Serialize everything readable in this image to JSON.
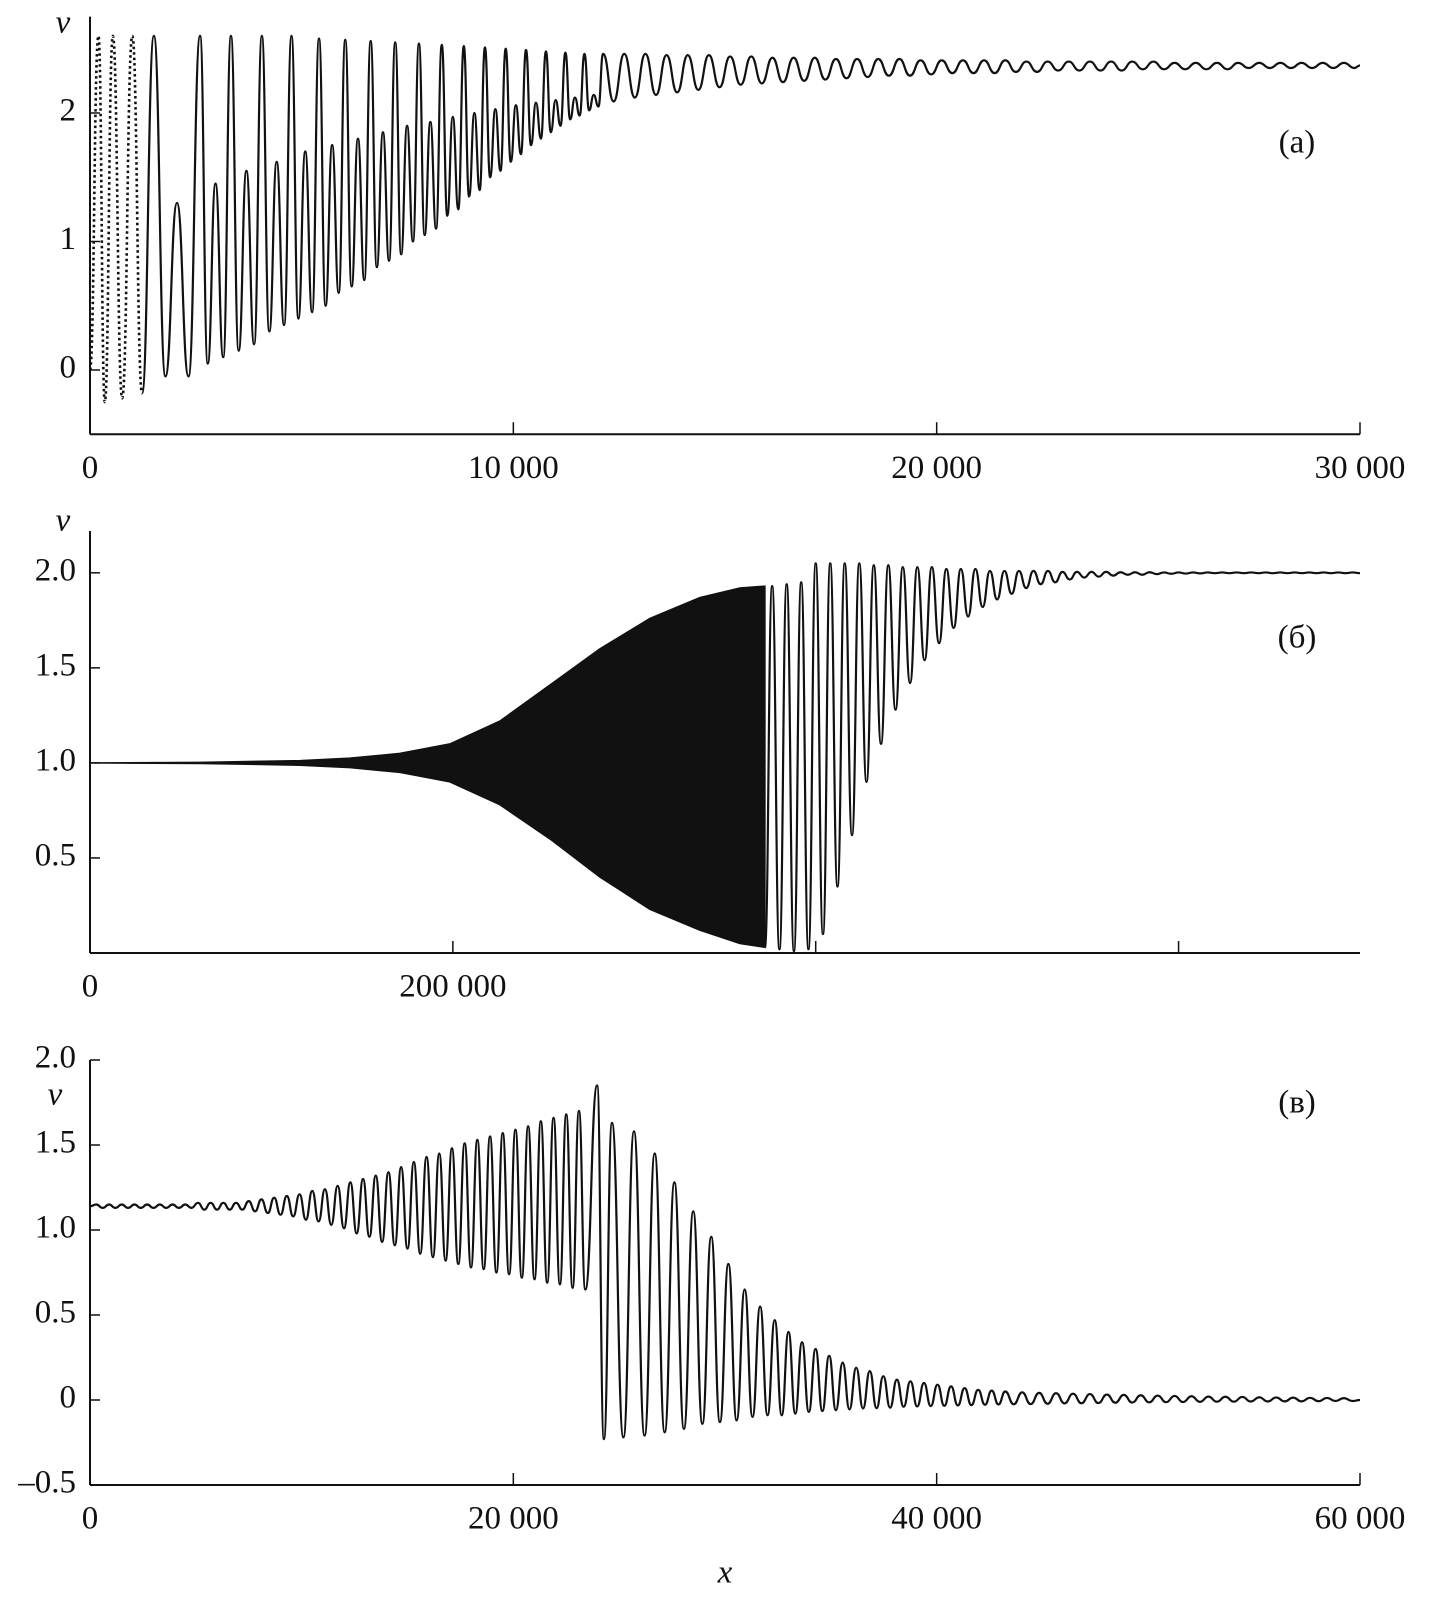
{
  "chart_data": [
    {
      "type": "line",
      "panel_label": "(а)",
      "y_label": "v",
      "color": "#111111",
      "xlim": [
        0,
        30000
      ],
      "ylim": [
        -0.5,
        2.75
      ],
      "xticks": [
        0,
        {
          "value": 10000,
          "label": "10 000"
        },
        {
          "value": 20000,
          "label": "20 000"
        },
        {
          "value": 30000,
          "label": "30 000"
        }
      ],
      "yticks": [
        0,
        1,
        2
      ],
      "series": [
        {
          "type": "line",
          "style": "dotted",
          "x": [
            0,
            200,
            350,
            540,
            760,
            1000,
            1230
          ],
          "values": [
            0,
            2.6,
            -0.25,
            2.6,
            -0.22,
            2.6,
            -0.18
          ]
        },
        {
          "type": "line",
          "style": "solid",
          "x": [
            1230,
            1510,
            1782,
            2055,
            2327,
            2600,
            2782,
            2965,
            3147,
            3330,
            3512,
            3695,
            3877,
            4060,
            4235,
            4410,
            4585,
            4760,
            4922,
            5085,
            5247,
            5410,
            5565,
            5720,
            5875,
            6030,
            6180,
            6330,
            6480,
            6630,
            6775,
            6920,
            7065,
            7210,
            7350,
            7490,
            7630,
            7770,
            7905,
            8040,
            8175,
            8310,
            8440,
            8570,
            8700,
            8830,
            8955,
            9080,
            9205,
            9330,
            9452,
            9575,
            9697,
            9820,
            9940,
            10060,
            10180,
            10300,
            10417,
            10535,
            10652,
            10770,
            10885,
            11000,
            11115,
            11230,
            11342,
            11455,
            11567,
            11680,
            11790,
            11900,
            12010,
            12120,
            12370,
            12620,
            12870,
            13120,
            13370,
            13620,
            13870,
            14120,
            14370,
            14620,
            14870,
            15120,
            15370,
            15620,
            15870,
            16120,
            16370,
            16620,
            16870,
            17120,
            17370,
            17620,
            17870,
            18120,
            18370,
            18620,
            18870,
            19120,
            19370,
            19620,
            19870,
            20120,
            20370,
            20620,
            20870,
            21120,
            21370,
            21620,
            21870,
            22120,
            22370,
            22620,
            22870,
            23120,
            23370,
            23620,
            23870,
            24120,
            24370,
            24620,
            24870,
            25120,
            25370,
            25620,
            25870,
            26120,
            26370,
            26620,
            26870,
            27120,
            27370,
            27620,
            27870,
            28120,
            28370,
            28620,
            28870,
            29120,
            29370,
            29620,
            29870,
            30000
          ],
          "values": [
            -0.18,
            2.6,
            -0.05,
            1.3,
            -0.05,
            2.6,
            0.05,
            1.45,
            0.1,
            2.6,
            0.15,
            1.55,
            0.2,
            2.6,
            0.3,
            1.62,
            0.35,
            2.6,
            0.4,
            1.7,
            0.45,
            2.58,
            0.5,
            1.75,
            0.6,
            2.57,
            0.65,
            1.8,
            0.7,
            2.56,
            0.8,
            1.85,
            0.85,
            2.55,
            0.9,
            1.9,
            1.0,
            2.54,
            1.05,
            1.93,
            1.1,
            2.53,
            1.2,
            1.97,
            1.25,
            2.52,
            1.35,
            2.0,
            1.4,
            2.51,
            1.5,
            2.03,
            1.55,
            2.5,
            1.62,
            2.06,
            1.68,
            2.49,
            1.75,
            2.08,
            1.8,
            2.48,
            1.85,
            2.1,
            1.9,
            2.47,
            1.95,
            2.12,
            1.98,
            2.46,
            2.02,
            2.14,
            2.05,
            2.46,
            2.09,
            2.46,
            2.12,
            2.46,
            2.14,
            2.45,
            2.16,
            2.45,
            2.18,
            2.45,
            2.2,
            2.44,
            2.22,
            2.44,
            2.23,
            2.43,
            2.24,
            2.43,
            2.25,
            2.43,
            2.26,
            2.42,
            2.27,
            2.42,
            2.28,
            2.42,
            2.29,
            2.42,
            2.29,
            2.41,
            2.3,
            2.41,
            2.31,
            2.41,
            2.31,
            2.41,
            2.31,
            2.41,
            2.32,
            2.4,
            2.32,
            2.4,
            2.33,
            2.4,
            2.33,
            2.4,
            2.33,
            2.4,
            2.33,
            2.4,
            2.34,
            2.4,
            2.34,
            2.39,
            2.34,
            2.39,
            2.34,
            2.39,
            2.34,
            2.39,
            2.35,
            2.39,
            2.35,
            2.39,
            2.35,
            2.39,
            2.35,
            2.39,
            2.35,
            2.39,
            2.35,
            2.37
          ]
        }
      ]
    },
    {
      "type": "line",
      "panel_label": "(б)",
      "y_label": "v",
      "color": "#111111",
      "xlim": [
        0,
        700000
      ],
      "ylim": [
        0,
        2.22
      ],
      "xticks": [
        0,
        {
          "value": 200000,
          "label": "200 000"
        }
      ],
      "xminorticks": [
        400000,
        600000
      ],
      "yticks": [
        0.5,
        {
          "value": 1,
          "label": "1.0"
        },
        1.5,
        {
          "value": 2,
          "label": "2.0"
        }
      ],
      "series": [
        {
          "type": "band",
          "x": [
            0,
            60600,
            115700,
            143300,
            170800,
            198400,
            225900,
            253500,
            281000,
            308600,
            336100,
            358200,
            372000
          ],
          "upper": [
            1.0,
            1.003,
            1.012,
            1.025,
            1.05,
            1.1,
            1.22,
            1.41,
            1.6,
            1.76,
            1.87,
            1.92,
            1.93
          ],
          "lower": [
            1.0,
            0.997,
            0.988,
            0.975,
            0.95,
            0.9,
            0.78,
            0.6,
            0.4,
            0.23,
            0.12,
            0.05,
            0.03
          ]
        },
        {
          "type": "line",
          "style": "solid",
          "x": [
            372000,
            376000,
            380000,
            384000,
            388000,
            392000,
            396000,
            400000,
            404000,
            408000,
            412000,
            416000,
            420000,
            424000,
            428000,
            432000,
            436000,
            440000,
            444000,
            448000,
            452000,
            456000,
            460000,
            464000,
            468000,
            472000,
            476000,
            480000,
            484000,
            488000,
            492000,
            496000,
            500000,
            504000,
            508000,
            512000,
            516000,
            520000,
            524000,
            528000,
            532000,
            536000,
            540000,
            544000,
            548000,
            552000,
            556000,
            560000,
            564000,
            568000,
            572000,
            576000,
            580000,
            584000,
            588000,
            592000,
            596000,
            600000,
            604000,
            608000,
            612000,
            616000,
            620000,
            624000,
            628000,
            632000,
            636000,
            640000,
            644000,
            648000,
            652000,
            656000,
            660000,
            664000,
            668000,
            672000,
            676000,
            680000,
            684000,
            688000,
            692000,
            696000,
            700000
          ],
          "values": [
            0.03,
            1.93,
            0.02,
            1.94,
            0.01,
            1.95,
            0.02,
            2.05,
            0.1,
            2.05,
            0.35,
            2.05,
            0.62,
            2.05,
            0.9,
            2.04,
            1.1,
            2.04,
            1.28,
            2.03,
            1.42,
            2.03,
            1.54,
            2.03,
            1.63,
            2.02,
            1.71,
            2.02,
            1.77,
            2.02,
            1.82,
            2.01,
            1.86,
            2.01,
            1.89,
            2.01,
            1.92,
            2.01,
            1.94,
            2.01,
            1.95,
            2.005,
            1.965,
            2.005,
            1.975,
            2.005,
            1.98,
            2.005,
            1.985,
            2.003,
            1.99,
            2.003,
            1.99,
            2.003,
            1.993,
            2.002,
            1.995,
            2.002,
            1.996,
            2.002,
            1.997,
            2.002,
            1.998,
            2.002,
            1.998,
            2.002,
            1.998,
            2.002,
            1.998,
            2.002,
            1.998,
            2.002,
            1.998,
            2.002,
            1.998,
            2.002,
            1.998,
            2.002,
            1.998,
            2.002,
            1.998,
            2.002,
            1.998
          ]
        }
      ]
    },
    {
      "type": "line",
      "panel_label": "(в)",
      "y_label": "v",
      "x_label": "x",
      "color": "#111111",
      "xlim": [
        0,
        60000
      ],
      "ylim": [
        -0.5,
        2.0
      ],
      "xticks": [
        0,
        {
          "value": 20000,
          "label": "20 000"
        },
        {
          "value": 40000,
          "label": "40 000"
        },
        {
          "value": 60000,
          "label": "60 000"
        }
      ],
      "yticks": [
        {
          "value": -0.5,
          "label": "–0.5"
        },
        0,
        0.5,
        {
          "value": 1,
          "label": "1.0"
        },
        1.5,
        {
          "value": 2,
          "label": "2.0"
        }
      ],
      "series": [
        {
          "type": "line",
          "style": "solid",
          "x": [
            0,
            300,
            600,
            900,
            1200,
            1500,
            1800,
            2100,
            2400,
            2700,
            3000,
            3300,
            3600,
            3900,
            4200,
            4500,
            4800,
            5100,
            5400,
            5700,
            6000,
            6300,
            6600,
            6900,
            7200,
            7500,
            7800,
            8100,
            8400,
            8700,
            9000,
            9300,
            9600,
            9900,
            10200,
            10500,
            10800,
            11100,
            11400,
            11700,
            12000,
            12300,
            12600,
            12900,
            13200,
            13500,
            13800,
            14100,
            14400,
            14700,
            15000,
            15300,
            15600,
            15900,
            16200,
            16500,
            16800,
            17100,
            17400,
            17700,
            18000,
            18300,
            18600,
            18900,
            19200,
            19500,
            19800,
            20100,
            20400,
            20700,
            21000,
            21300,
            21600,
            21900,
            22200,
            22500,
            22800,
            23100,
            23400,
            23960,
            24280,
            24660,
            25200,
            25700,
            26200,
            26680,
            27150,
            27610,
            28060,
            28500,
            28930,
            29350,
            29760,
            30160,
            30550,
            30930,
            31300,
            31660,
            32010,
            32350,
            32680,
            33000,
            33320,
            33640,
            33960,
            34280,
            34600,
            34920,
            35240,
            35560,
            35880,
            36200,
            36520,
            36840,
            37160,
            37480,
            37800,
            38120,
            38440,
            38760,
            39080,
            39400,
            39720,
            40040,
            40360,
            40680,
            41000,
            41320,
            41640,
            41960,
            42280,
            42600,
            42920,
            43240,
            43640,
            44040,
            44440,
            44840,
            45240,
            45640,
            46040,
            46440,
            46840,
            47240,
            47640,
            48040,
            48440,
            48840,
            49240,
            49640,
            50040,
            50440,
            50840,
            51240,
            51640,
            52040,
            52440,
            52840,
            53240,
            53640,
            54040,
            54440,
            54840,
            55240,
            55640,
            56040,
            56440,
            56840,
            57240,
            57640,
            58040,
            58440,
            58840,
            59240,
            59640,
            60000
          ],
          "values": [
            1.14,
            1.15,
            1.13,
            1.15,
            1.13,
            1.15,
            1.13,
            1.15,
            1.13,
            1.15,
            1.13,
            1.15,
            1.13,
            1.15,
            1.13,
            1.15,
            1.13,
            1.16,
            1.12,
            1.16,
            1.12,
            1.16,
            1.12,
            1.16,
            1.12,
            1.17,
            1.11,
            1.18,
            1.1,
            1.19,
            1.09,
            1.2,
            1.08,
            1.21,
            1.06,
            1.23,
            1.05,
            1.24,
            1.03,
            1.26,
            1.01,
            1.28,
            0.98,
            1.3,
            0.96,
            1.32,
            0.93,
            1.34,
            0.91,
            1.37,
            0.89,
            1.4,
            0.86,
            1.43,
            0.84,
            1.45,
            0.82,
            1.48,
            0.8,
            1.51,
            0.78,
            1.53,
            0.77,
            1.55,
            0.75,
            1.57,
            0.74,
            1.59,
            0.72,
            1.61,
            0.71,
            1.64,
            0.69,
            1.66,
            0.68,
            1.68,
            0.66,
            1.7,
            0.65,
            1.85,
            -0.23,
            1.63,
            -0.22,
            1.58,
            -0.21,
            1.45,
            -0.19,
            1.28,
            -0.17,
            1.11,
            -0.14,
            0.96,
            -0.13,
            0.8,
            -0.12,
            0.65,
            -0.1,
            0.55,
            -0.09,
            0.47,
            -0.09,
            0.4,
            -0.08,
            0.34,
            -0.07,
            0.3,
            -0.065,
            0.26,
            -0.06,
            0.22,
            -0.055,
            0.19,
            -0.05,
            0.17,
            -0.048,
            0.14,
            -0.045,
            0.12,
            -0.04,
            0.11,
            -0.038,
            0.1,
            -0.036,
            0.09,
            -0.034,
            0.08,
            -0.032,
            0.07,
            -0.03,
            0.06,
            -0.028,
            0.055,
            -0.026,
            0.05,
            -0.025,
            0.045,
            -0.024,
            0.042,
            -0.022,
            0.04,
            -0.02,
            0.037,
            -0.019,
            0.035,
            -0.018,
            0.032,
            -0.016,
            0.03,
            -0.015,
            0.028,
            -0.014,
            0.026,
            -0.013,
            0.024,
            -0.012,
            0.022,
            -0.011,
            0.02,
            -0.01,
            0.019,
            -0.01,
            0.018,
            -0.009,
            0.016,
            -0.009,
            0.015,
            -0.008,
            0.014,
            -0.008,
            0.013,
            -0.007,
            0.012,
            -0.006,
            0.011,
            -0.006,
            0
          ]
        }
      ]
    }
  ]
}
